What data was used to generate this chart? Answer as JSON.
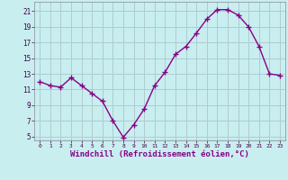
{
  "x": [
    0,
    1,
    2,
    3,
    4,
    5,
    6,
    7,
    8,
    9,
    10,
    11,
    12,
    13,
    14,
    15,
    16,
    17,
    18,
    19,
    20,
    21,
    22,
    23
  ],
  "y": [
    12.0,
    11.5,
    11.3,
    12.5,
    11.5,
    10.5,
    9.5,
    7.0,
    4.9,
    6.5,
    8.5,
    11.5,
    13.2,
    15.5,
    16.5,
    18.2,
    20.0,
    21.2,
    21.2,
    20.5,
    19.0,
    16.5,
    13.0,
    12.8
  ],
  "line_color": "#880088",
  "marker": "P",
  "markersize": 2.5,
  "linewidth": 1.0,
  "xlabel": "Windchill (Refroidissement éolien,°C)",
  "xlabel_fontsize": 6.5,
  "bg_color": "#c8eef0",
  "grid_color": "#b0ccd0",
  "yticks": [
    5,
    7,
    9,
    11,
    13,
    15,
    17,
    19,
    21
  ],
  "xticks": [
    0,
    1,
    2,
    3,
    4,
    5,
    6,
    7,
    8,
    9,
    10,
    11,
    12,
    13,
    14,
    15,
    16,
    17,
    18,
    19,
    20,
    21,
    22,
    23
  ],
  "xlim": [
    -0.5,
    23.5
  ],
  "ylim": [
    4.5,
    22.2
  ]
}
